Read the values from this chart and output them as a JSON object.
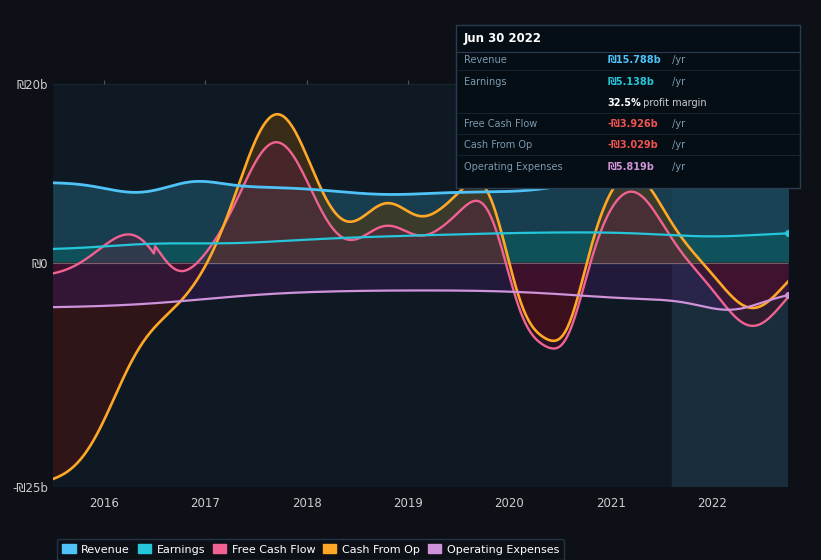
{
  "bg_color": "#0d1117",
  "chart_bg": "#0f1923",
  "title_box_date": "Jun 30 2022",
  "ylim": [
    -25,
    20
  ],
  "yticks": [
    -25,
    0,
    20
  ],
  "ytick_labels": [
    "-₪25b",
    "₪0",
    "₪20b"
  ],
  "xlim": [
    2015.5,
    2022.75
  ],
  "xticks": [
    2016,
    2017,
    2018,
    2019,
    2020,
    2021,
    2022
  ],
  "colors": {
    "revenue": "#4fc3f7",
    "earnings": "#26c6da",
    "free_cash_flow": "#f06292",
    "cash_from_op": "#ffa726",
    "operating_expenses": "#ce93d8"
  },
  "fill_colors": {
    "revenue_fill": "#1a4a5e",
    "earnings_fill": "#0d5a5e",
    "cash_pos_fill": "#5a3a10",
    "cash_neg_fill": "#4a1010",
    "opex_fill": "#3a1a5a",
    "fcf_pos_fill": "#5a2040",
    "fcf_neg_fill": "#4a0a20"
  },
  "legend_items": [
    {
      "label": "Revenue",
      "color": "#4fc3f7"
    },
    {
      "label": "Earnings",
      "color": "#26c6da"
    },
    {
      "label": "Free Cash Flow",
      "color": "#f06292"
    },
    {
      "label": "Cash From Op",
      "color": "#ffa726"
    },
    {
      "label": "Operating Expenses",
      "color": "#ce93d8"
    }
  ],
  "info_rows": [
    {
      "label": "Revenue",
      "value": "₪15.788b",
      "suffix": " /yr",
      "val_color": "#4fc3f7"
    },
    {
      "label": "Earnings",
      "value": "₪5.138b",
      "suffix": " /yr",
      "val_color": "#26c6da"
    },
    {
      "label": "",
      "value": "32.5%",
      "suffix": " profit margin",
      "val_color": "#ffffff"
    },
    {
      "label": "Free Cash Flow",
      "value": "-₪3.926b",
      "suffix": " /yr",
      "val_color": "#ef5350"
    },
    {
      "label": "Cash From Op",
      "value": "-₪3.029b",
      "suffix": " /yr",
      "val_color": "#ef5350"
    },
    {
      "label": "Operating Expenses",
      "value": "₪5.819b",
      "suffix": " /yr",
      "val_color": "#ce93d8"
    }
  ],
  "forecast_start": 2021.6,
  "zero_line_color": "#aaaaaa",
  "grid_color": "#2a3a4a"
}
